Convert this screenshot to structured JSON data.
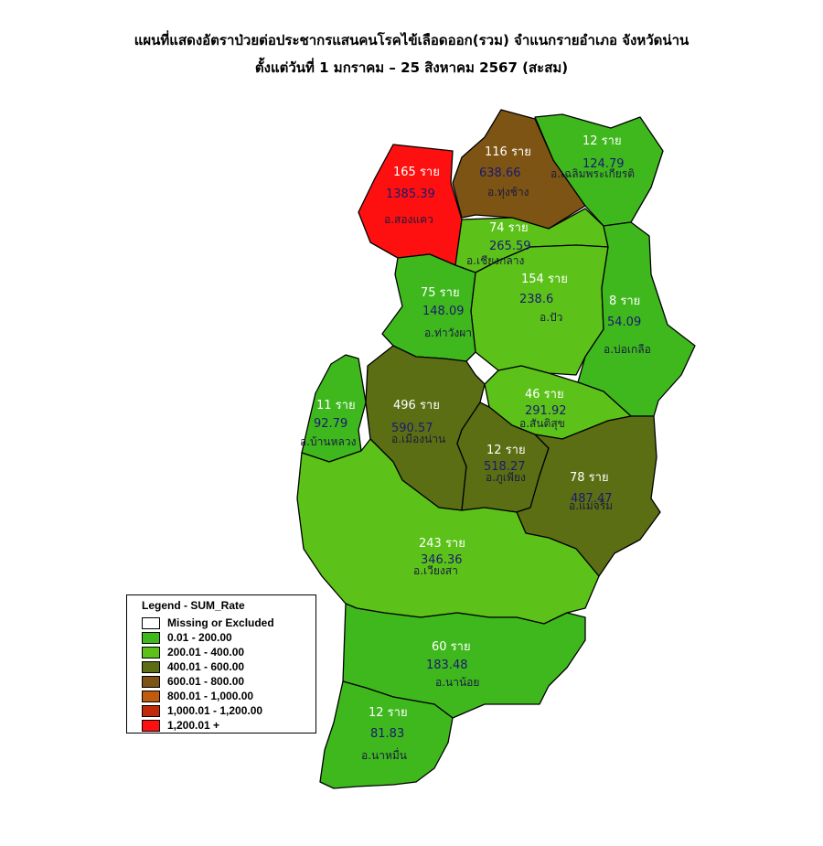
{
  "title": {
    "line1": "แผนที่แสดงอัตราป่วยต่อประชากรแสนคนโรคไข้เลือดออก(รวม) จำแนกรายอำเภอ จังหวัดน่าน",
    "line2": "ตั้งแต่วันที่  1 มกราคม – 25 สิงหาคม 2567 (สะสม)"
  },
  "legend": {
    "title": "Legend - SUM_Rate",
    "items": [
      {
        "label": "Missing or Excluded",
        "color": "#ffffff"
      },
      {
        "label": "0.01 - 200.00",
        "color": "#3fb81e"
      },
      {
        "label": "200.01 - 400.00",
        "color": "#5cc21a"
      },
      {
        "label": "400.01 - 600.00",
        "color": "#5c6e14"
      },
      {
        "label": "600.01 - 800.00",
        "color": "#7d5414"
      },
      {
        "label": "800.01 - 1,000.00",
        "color": "#c05a0c"
      },
      {
        "label": "1,000.01 - 1,200.00",
        "color": "#c02a0a"
      },
      {
        "label": "1,200.01 +",
        "color": "#ff1010"
      }
    ]
  },
  "districts": [
    {
      "id": "songkhwae",
      "name": "อ.สองแคว",
      "cases": "165 ราย",
      "rate": "1385.39",
      "color": "#ff1010"
    },
    {
      "id": "thungchang",
      "name": "อ.ทุ่งช้าง",
      "cases": "116 ราย",
      "rate": "638.66",
      "color": "#7d5414"
    },
    {
      "id": "chaloem",
      "name": "อ.เฉลิมพระเกียรติ",
      "cases": "12 ราย",
      "rate": "124.79",
      "color": "#3fb81e"
    },
    {
      "id": "chiangklang",
      "name": "อ.เชียงกลาง",
      "cases": "74 ราย",
      "rate": "265.59",
      "color": "#5cc21a"
    },
    {
      "id": "pua",
      "name": "อ.ปัว",
      "cases": "154 ราย",
      "rate": "238.6",
      "color": "#5cc21a"
    },
    {
      "id": "thawangpha",
      "name": "อ.ท่าวังผา",
      "cases": "75 ราย",
      "rate": "148.09",
      "color": "#3fb81e"
    },
    {
      "id": "bokluea",
      "name": "อ.บ่อเกลือ",
      "cases": "8 ราย",
      "rate": "54.09",
      "color": "#3fb81e"
    },
    {
      "id": "banluang",
      "name": "อ.บ้านหลวง",
      "cases": "11 ราย",
      "rate": "92.79",
      "color": "#3fb81e"
    },
    {
      "id": "mueang",
      "name": "อ.เมืองน่าน",
      "cases": "496 ราย",
      "rate": "590.57",
      "color": "#5c6e14"
    },
    {
      "id": "santisuk",
      "name": "อ.สันติสุข",
      "cases": "46 ราย",
      "rate": "291.92",
      "color": "#5cc21a"
    },
    {
      "id": "phuphiang",
      "name": "อ.ภูเพียง",
      "cases": "12 ราย",
      "rate": "518.27",
      "color": "#5c6e14"
    },
    {
      "id": "maecharim",
      "name": "อ.แม่จริม",
      "cases": "78 ราย",
      "rate": "487.47",
      "color": "#5c6e14"
    },
    {
      "id": "wiangsa",
      "name": "อ.เวียงสา",
      "cases": "243 ราย",
      "rate": "346.36",
      "color": "#5cc21a"
    },
    {
      "id": "nanoi",
      "name": "อ.นาน้อย",
      "cases": "60 ราย",
      "rate": "183.48",
      "color": "#3fb81e"
    },
    {
      "id": "namuen",
      "name": "อ.นาหมื่น",
      "cases": "12 ราย",
      "rate": "81.83",
      "color": "#3fb81e"
    }
  ]
}
